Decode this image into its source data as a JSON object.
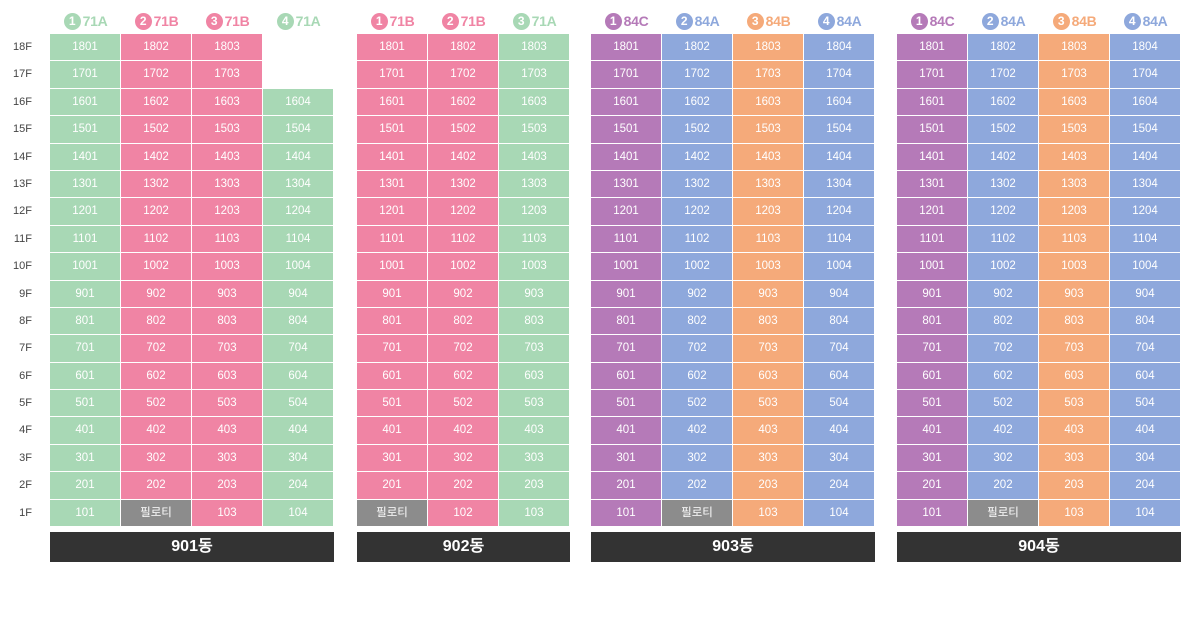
{
  "floors": [
    "18F",
    "17F",
    "16F",
    "15F",
    "14F",
    "13F",
    "12F",
    "11F",
    "10F",
    "9F",
    "8F",
    "7F",
    "6F",
    "5F",
    "4F",
    "3F",
    "2F",
    "1F"
  ],
  "piloti_label": "필로티",
  "colors": {
    "71A": "#a8d8b5",
    "71B": "#f084a4",
    "84C": "#b57ab8",
    "84A": "#8ea8dc",
    "84B": "#f5aa7a"
  },
  "buildings": [
    {
      "name": "901동",
      "lines": [
        {
          "num": "1",
          "type": "71A",
          "top": 18,
          "piloti": false
        },
        {
          "num": "2",
          "type": "71B",
          "top": 18,
          "piloti": true
        },
        {
          "num": "3",
          "type": "71B",
          "top": 18,
          "piloti": false
        },
        {
          "num": "4",
          "type": "71A",
          "top": 16,
          "piloti": false
        }
      ]
    },
    {
      "name": "902동",
      "lines": [
        {
          "num": "1",
          "type": "71B",
          "top": 18,
          "piloti": true
        },
        {
          "num": "2",
          "type": "71B",
          "top": 18,
          "piloti": false
        },
        {
          "num": "3",
          "type": "71A",
          "top": 18,
          "piloti": false
        }
      ]
    },
    {
      "name": "903동",
      "lines": [
        {
          "num": "1",
          "type": "84C",
          "top": 18,
          "piloti": false
        },
        {
          "num": "2",
          "type": "84A",
          "top": 18,
          "piloti": true
        },
        {
          "num": "3",
          "type": "84B",
          "top": 18,
          "piloti": false
        },
        {
          "num": "4",
          "type": "84A",
          "top": 18,
          "piloti": false
        }
      ]
    },
    {
      "name": "904동",
      "lines": [
        {
          "num": "1",
          "type": "84C",
          "top": 18,
          "piloti": false
        },
        {
          "num": "2",
          "type": "84A",
          "top": 18,
          "piloti": true
        },
        {
          "num": "3",
          "type": "84B",
          "top": 18,
          "piloti": false
        },
        {
          "num": "4",
          "type": "84A",
          "top": 18,
          "piloti": false
        }
      ]
    }
  ]
}
